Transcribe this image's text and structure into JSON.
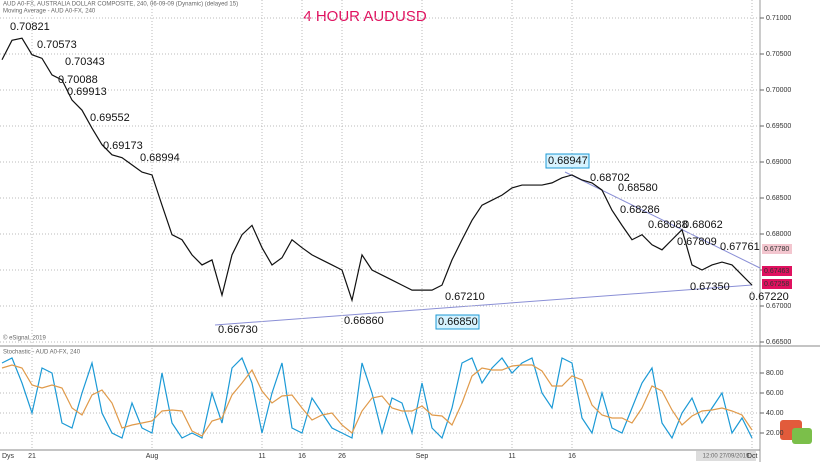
{
  "chart_data": [
    {
      "type": "line",
      "title": "4 HOUR AUDUSD",
      "header": [
        "AUD A0-FX, AUSTRALIA DOLLAR COMPOSITE, 240, 06-09-09 (Dynamic) (delayed 15)",
        "Moving Average - AUD A0-FX, 240"
      ],
      "footer": "© eSignal, 2019",
      "x_label": "Dys",
      "cursor_label": "12:00 27/09/2019",
      "categories": [
        null,
        null,
        null,
        "21",
        null,
        null,
        null,
        null,
        null,
        null,
        null,
        null,
        null,
        null,
        null,
        "Aug",
        null,
        null,
        null,
        null,
        null,
        null,
        null,
        null,
        null,
        null,
        "11",
        null,
        null,
        null,
        "16",
        null,
        null,
        null,
        "26",
        null,
        null,
        null,
        null,
        null,
        null,
        null,
        "Sep",
        null,
        null,
        null,
        null,
        null,
        null,
        null,
        null,
        "11",
        null,
        null,
        null,
        null,
        null,
        "16",
        null,
        null,
        null,
        null,
        null,
        null,
        null,
        null,
        null,
        null,
        null,
        null,
        null,
        null,
        null,
        null,
        null,
        "Oct"
      ],
      "series": [
        {
          "color": "#111111",
          "values": [
            0.7042,
            0.7069,
            0.7072,
            0.7049,
            0.7044,
            0.7021,
            0.7014,
            0.6986,
            0.6972,
            0.6947,
            0.6924,
            0.691,
            0.6906,
            0.6896,
            0.6886,
            0.6882,
            0.684,
            0.6799,
            0.6792,
            0.6771,
            0.6757,
            0.6764,
            0.6715,
            0.6771,
            0.6799,
            0.6812,
            0.6781,
            0.6757,
            0.6767,
            0.6792,
            0.6781,
            0.6771,
            0.6764,
            0.6757,
            0.675,
            0.6708,
            0.6771,
            0.675,
            0.6743,
            0.6736,
            0.6729,
            0.6722,
            0.6722,
            0.6722,
            0.6729,
            0.6764,
            0.6792,
            0.6819,
            0.684,
            0.6847,
            0.6854,
            0.6864,
            0.6868,
            0.6868,
            0.6868,
            0.6871,
            0.6878,
            0.6882,
            0.6875,
            0.6871,
            0.6861,
            0.6833,
            0.6812,
            0.6792,
            0.6799,
            0.6785,
            0.6778,
            0.6792,
            0.6806,
            0.6757,
            0.675,
            0.6757,
            0.6761,
            0.6757,
            0.6743,
            0.6729
          ]
        }
      ],
      "ylim": [
        0.6655,
        0.7125
      ],
      "yticks": [
        {
          "value": 0.71,
          "label": "0.71000"
        },
        {
          "value": 0.705,
          "label": "0.70500"
        },
        {
          "value": 0.7,
          "label": "0.70000"
        },
        {
          "value": 0.695,
          "label": "0.69500"
        },
        {
          "value": 0.69,
          "label": "0.69000"
        },
        {
          "value": 0.685,
          "label": "0.68500"
        },
        {
          "value": 0.68,
          "label": "0.68000"
        },
        {
          "value": 0.675,
          "label": "0.67500"
        },
        {
          "value": 0.67,
          "label": "0.67000"
        },
        {
          "value": 0.665,
          "label": "0.66500"
        }
      ],
      "grid": true,
      "annotations": [
        "0.70821",
        "0.70573",
        "0.70343",
        "0.70088",
        "0.69913",
        "0.69552",
        "0.69173",
        "0.68994",
        "0.66730",
        "0.66860",
        "0.67210",
        "0.66850",
        "0.68947",
        "0.68702",
        "0.68580",
        "0.68286",
        "0.68088",
        "0.68062",
        "0.67809",
        "0.67761",
        "0.67350",
        "0.67220"
      ],
      "price_tags": [
        "0.67780",
        "0.67463",
        "0.67258"
      ]
    },
    {
      "type": "line",
      "title": "Stochastic - AUD A0-FX, 240",
      "series": [
        {
          "color": "#1c9ad6",
          "values": [
            90,
            95,
            70,
            40,
            85,
            80,
            30,
            25,
            60,
            90,
            40,
            20,
            15,
            50,
            25,
            20,
            80,
            30,
            15,
            20,
            15,
            60,
            30,
            85,
            95,
            70,
            20,
            60,
            90,
            25,
            20,
            55,
            40,
            25,
            20,
            15,
            90,
            60,
            20,
            55,
            50,
            20,
            70,
            25,
            15,
            45,
            90,
            95,
            70,
            85,
            95,
            80,
            90,
            95,
            60,
            45,
            95,
            90,
            35,
            20,
            60,
            25,
            20,
            45,
            70,
            85,
            30,
            15,
            40,
            55,
            30,
            45,
            60,
            20,
            35,
            15
          ]
        },
        {
          "color": "#e09a4a",
          "values": [
            85,
            88,
            85,
            68,
            65,
            68,
            65,
            45,
            38,
            58,
            63,
            50,
            25,
            28,
            30,
            32,
            42,
            43,
            42,
            22,
            17,
            32,
            35,
            58,
            70,
            83,
            62,
            50,
            57,
            58,
            45,
            33,
            38,
            40,
            28,
            20,
            42,
            55,
            57,
            45,
            42,
            42,
            47,
            38,
            37,
            28,
            50,
            77,
            85,
            83,
            83,
            87,
            88,
            88,
            82,
            67,
            67,
            77,
            73,
            48,
            38,
            35,
            35,
            30,
            45,
            67,
            62,
            43,
            28,
            37,
            42,
            43,
            45,
            42,
            38,
            23
          ]
        }
      ],
      "ylim": [
        5,
        105
      ],
      "yticks": [
        {
          "value": 80,
          "label": "80.00"
        },
        {
          "value": 60,
          "label": "60.00"
        },
        {
          "value": 40,
          "label": "40.00"
        },
        {
          "value": 20,
          "label": "20.00"
        }
      ],
      "grid": true
    }
  ]
}
